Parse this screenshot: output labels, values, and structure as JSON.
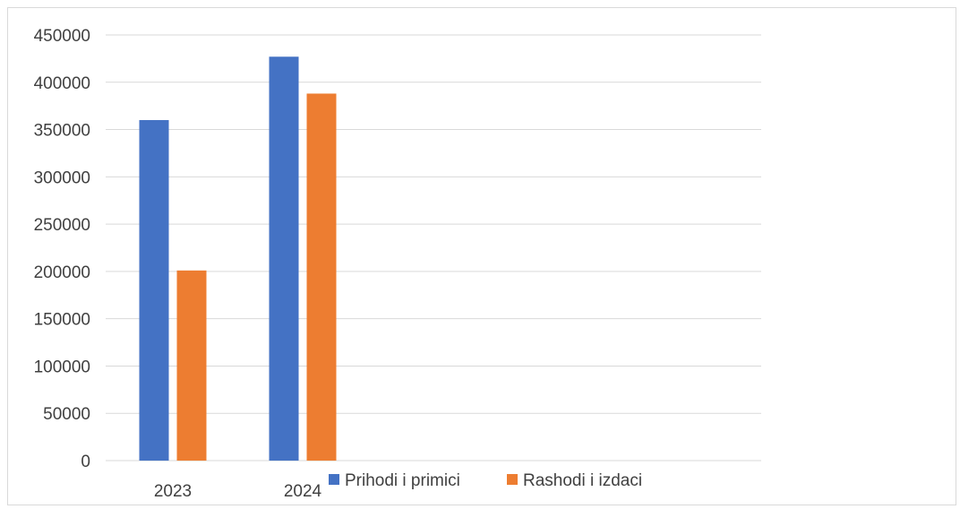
{
  "chart_data": {
    "type": "bar",
    "title": "",
    "xlabel": "",
    "ylabel": "",
    "categories": [
      "2023",
      "2024"
    ],
    "series": [
      {
        "name": "Prihodi i primici",
        "values": [
          360000,
          427000
        ],
        "color": "#4472C4"
      },
      {
        "name": "Rashodi i izdaci",
        "values": [
          201000,
          388000
        ],
        "color": "#ED7D31"
      }
    ],
    "ylim": [
      0,
      450000
    ],
    "yticks": [
      0,
      50000,
      100000,
      150000,
      200000,
      250000,
      300000,
      350000,
      400000,
      450000
    ],
    "ytick_labels": [
      "0",
      "50000",
      "100000",
      "150000",
      "200000",
      "250000",
      "300000",
      "350000",
      "400000",
      "450000"
    ],
    "grid": true,
    "legend_position": "bottom"
  }
}
